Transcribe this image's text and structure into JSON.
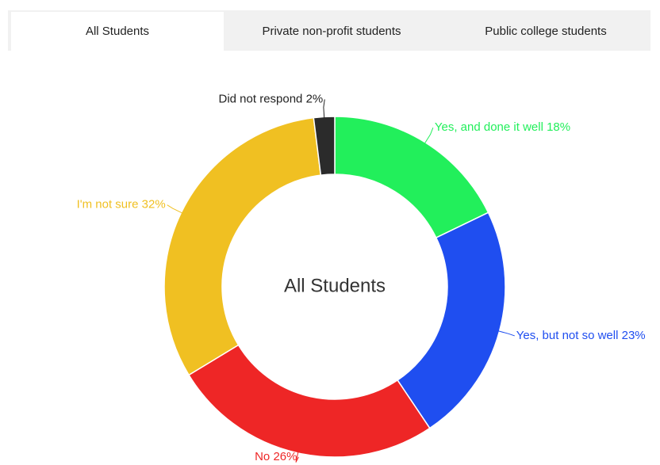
{
  "tabs": [
    {
      "label": "All Students",
      "active": true
    },
    {
      "label": "Private non-profit students",
      "active": false
    },
    {
      "label": "Public college students",
      "active": false
    }
  ],
  "chart_data": {
    "type": "donut",
    "center_label": "All Students",
    "categories": [
      "Yes, and done it well",
      "Yes, but not so well",
      "No",
      "I'm not sure",
      "Did not respond"
    ],
    "values": [
      18,
      23,
      26,
      32,
      2
    ],
    "value_labels": [
      "18%",
      "23%",
      "26%",
      "32%",
      "2%"
    ],
    "colors": [
      "#22ef5b",
      "#1f4ef0",
      "#ee2626",
      "#f0c022",
      "#2b2b2b"
    ],
    "label_colors": [
      "#22ef5b",
      "#1f4ef0",
      "#ee2626",
      "#f0c022",
      "#222222"
    ]
  }
}
